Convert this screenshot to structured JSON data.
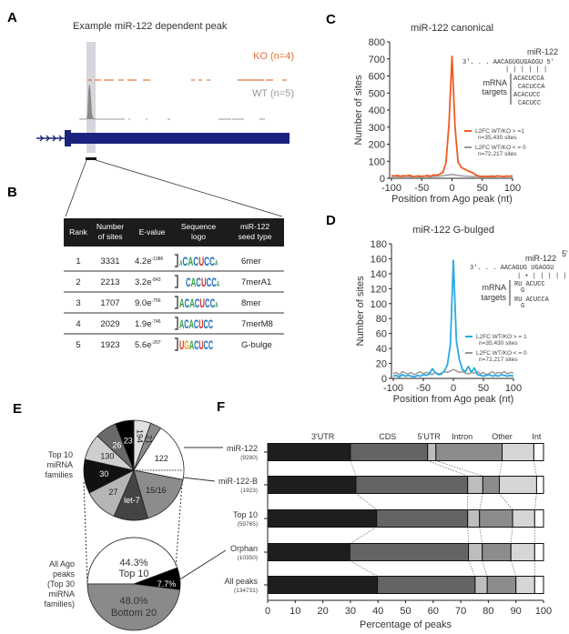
{
  "panels": {
    "A": "A",
    "B": "B",
    "C": "C",
    "D": "D",
    "E": "E",
    "F": "F"
  },
  "panelA": {
    "title": "Example miR-122 dependent peak",
    "ko_label": "KO (n=4)",
    "wt_label": "WT (n=5)",
    "colors": {
      "ko": "#e8703a",
      "wt": "#8a8a8a",
      "gene": "#1a237e"
    }
  },
  "panelB": {
    "headers": [
      "Rank",
      "Number\nof sites",
      "E-value",
      "Sequence\nlogo",
      "miR-122\nseed type"
    ],
    "header_lines": [
      [
        "Rank"
      ],
      [
        "Number",
        "of sites"
      ],
      [
        "E-value"
      ],
      [
        "Sequence",
        "logo"
      ],
      [
        "miR-122",
        "seed type"
      ]
    ],
    "rows": [
      {
        "rank": "1",
        "sites": "3331",
        "e_base": "4.2e",
        "e_exp": "-1086",
        "logo": "ACACUCCA",
        "seed": "6mer"
      },
      {
        "rank": "2",
        "sites": "2213",
        "e_base": "3.2e",
        "e_exp": "-843",
        "logo": "CACUCCA",
        "seed": "7merA1"
      },
      {
        "rank": "3",
        "sites": "1707",
        "e_base": "9.0e",
        "e_exp": "-756",
        "logo": "ACACUCCA",
        "seed": "8mer"
      },
      {
        "rank": "4",
        "sites": "2029",
        "e_base": "1.9e",
        "e_exp": "-746",
        "logo": "ACACUCC",
        "seed": "7merM8"
      },
      {
        "rank": "5",
        "sites": "1923",
        "e_base": "5.6e",
        "e_exp": "-207",
        "logo": "UGACUCC",
        "seed": "G-bulge"
      }
    ]
  },
  "chart_data": [
    {
      "id": "C",
      "type": "line",
      "title": "miR-122 canonical",
      "xlabel": "Position from Ago peak (nt)",
      "ylabel": "Number of sites",
      "xlim": [
        -100,
        100
      ],
      "ylim": [
        0,
        800
      ],
      "xticks": [
        -100,
        -50,
        0,
        50,
        100
      ],
      "yticks": [
        0,
        100,
        200,
        300,
        400,
        500,
        600,
        700,
        800
      ],
      "x": [
        -100,
        -95,
        -90,
        -85,
        -80,
        -75,
        -70,
        -65,
        -60,
        -55,
        -50,
        -45,
        -40,
        -35,
        -30,
        -25,
        -20,
        -15,
        -10,
        -5,
        0,
        5,
        10,
        15,
        20,
        25,
        30,
        35,
        40,
        45,
        50,
        55,
        60,
        65,
        70,
        75,
        80,
        85,
        90,
        95,
        100
      ],
      "series": [
        {
          "name": "L2FC WT/KO > =1",
          "note": "n=35,430 sites",
          "color": "#f05a22",
          "values": [
            15,
            14,
            16,
            12,
            15,
            13,
            18,
            10,
            12,
            14,
            11,
            13,
            16,
            12,
            20,
            18,
            25,
            35,
            90,
            320,
            715,
            300,
            95,
            65,
            55,
            45,
            38,
            30,
            18,
            12,
            10,
            12,
            10,
            13,
            11,
            14,
            12,
            10,
            13,
            12,
            14
          ]
        },
        {
          "name": "L2FC WT/KO < = 0",
          "note": "n=72,217 sites",
          "color": "#999999",
          "values": [
            10,
            12,
            9,
            11,
            10,
            12,
            9,
            10,
            11,
            9,
            10,
            12,
            10,
            9,
            11,
            12,
            13,
            15,
            18,
            20,
            22,
            20,
            17,
            15,
            13,
            12,
            11,
            10,
            12,
            9,
            11,
            10,
            12,
            10,
            9,
            11,
            12,
            10,
            11,
            12,
            10
          ]
        }
      ],
      "annotation": {
        "mirna": "miR-122",
        "mir_seq": "3'. . . AACAGUGUGAGGU 5'",
        "pairs": "| | | | | |",
        "targets_label": [
          "mRNA",
          "targets"
        ],
        "targets": [
          "ACACUCCA",
          "CACUCCA",
          "ACACUCC",
          "CACUCC"
        ]
      }
    },
    {
      "id": "D",
      "type": "line",
      "title": "miR-122 G-bulged",
      "xlabel": "Position from Ago peak (nt)",
      "ylabel": "Number of sites",
      "xlim": [
        -100,
        100
      ],
      "ylim": [
        0,
        180
      ],
      "xticks": [
        -100,
        -50,
        0,
        50,
        100
      ],
      "yticks": [
        0,
        20,
        40,
        60,
        80,
        100,
        120,
        140,
        160,
        180
      ],
      "x": [
        -100,
        -95,
        -90,
        -85,
        -80,
        -75,
        -70,
        -65,
        -60,
        -55,
        -50,
        -45,
        -40,
        -35,
        -30,
        -25,
        -20,
        -15,
        -10,
        -5,
        0,
        5,
        10,
        15,
        20,
        25,
        30,
        35,
        40,
        45,
        50,
        55,
        60,
        65,
        70,
        75,
        80,
        85,
        90,
        95,
        100
      ],
      "series": [
        {
          "name": "L2FC WT/KO > = 1",
          "note": "n=35,430 sites",
          "color": "#29abe2",
          "values": [
            3,
            4,
            2,
            5,
            3,
            4,
            3,
            2,
            4,
            3,
            5,
            4,
            6,
            13,
            8,
            5,
            6,
            10,
            18,
            45,
            158,
            50,
            25,
            12,
            9,
            16,
            8,
            14,
            5,
            4,
            3,
            4,
            5,
            3,
            4,
            3,
            5,
            4,
            3,
            4,
            3
          ]
        },
        {
          "name": "L2FC WT/KO < = 0",
          "note": "n=72,217 sites",
          "color": "#999999",
          "values": [
            6,
            8,
            5,
            9,
            7,
            6,
            8,
            5,
            7,
            9,
            6,
            8,
            7,
            5,
            8,
            6,
            7,
            9,
            8,
            10,
            12,
            10,
            8,
            9,
            7,
            6,
            8,
            7,
            9,
            6,
            8,
            5,
            7,
            9,
            6,
            8,
            7,
            9,
            6,
            8,
            7
          ]
        }
      ],
      "annotation": {
        "five_prime": "5'",
        "mirna": "miR-122",
        "mir_seq": "3'. . . AACAGUG UGAGGU",
        "pairs": "| • | | | | |",
        "targets_label": [
          "mRNA",
          "targets"
        ],
        "targets": [
          "RU ACUCC",
          "RU ACUCCA"
        ],
        "bulge": "G"
      }
    },
    {
      "id": "E-top",
      "type": "pie",
      "label": [
        "Top 10",
        "miRNA",
        "families"
      ],
      "slices": [
        {
          "label": "194",
          "value": 5.5,
          "color": "#e0e0e0"
        },
        {
          "label": "21",
          "value": 3.5,
          "color": "#8a8a8a"
        },
        {
          "label": "122",
          "value": 19,
          "color": "#ffffff"
        },
        {
          "label": "15/16",
          "value": 17.5,
          "color": "#8c8c8c"
        },
        {
          "label": "let-7",
          "value": 11,
          "color": "#444444"
        },
        {
          "label": "27",
          "value": 11,
          "color": "#b5b5b5"
        },
        {
          "label": "30",
          "value": 11,
          "color": "#111111"
        },
        {
          "label": "130",
          "value": 8.5,
          "color": "#cfcfcf"
        },
        {
          "label": "26",
          "value": 7,
          "color": "#6a6a6a"
        },
        {
          "label": "23",
          "value": 6,
          "color": "#000000"
        }
      ]
    },
    {
      "id": "E-bottom",
      "type": "pie",
      "label": [
        "All Ago",
        "peaks",
        "(Top 30",
        "miRNA",
        "families)"
      ],
      "slices": [
        {
          "label": "44.3%",
          "sub": "Top 10",
          "value": 44.3,
          "color": "#ffffff"
        },
        {
          "label": "7.7%",
          "sub": "",
          "value": 7.7,
          "color": "#000000"
        },
        {
          "label": "48.0%",
          "sub": "Bottom 20",
          "value": 48.0,
          "color": "#8a8a8a"
        }
      ]
    },
    {
      "id": "F",
      "type": "bar",
      "orientation": "horizontal-stacked",
      "xlabel": "Percentage of peaks",
      "xlim": [
        0,
        100
      ],
      "xticks": [
        0,
        10,
        20,
        30,
        40,
        50,
        60,
        70,
        80,
        90,
        100
      ],
      "segments": [
        {
          "name": "3'UTR",
          "color": "#1e1e1e"
        },
        {
          "name": "CDS",
          "color": "#646464"
        },
        {
          "name": "5'UTR",
          "color": "#bdbdbd"
        },
        {
          "name": "Intron",
          "color": "#8c8c8c"
        },
        {
          "name": "Other",
          "color": "#d6d6d6"
        },
        {
          "name": "Int",
          "color": "#ffffff"
        }
      ],
      "categories": [
        {
          "name": "miR-122",
          "n": "(9280)"
        },
        {
          "name": "miR-122-B",
          "n": "(1923)"
        },
        {
          "name": "Top 10",
          "n": "(59765)"
        },
        {
          "name": "Orphan",
          "n": "(10350)"
        },
        {
          "name": "All peaks",
          "n": "(134731)"
        }
      ],
      "values": [
        [
          30,
          28,
          3,
          24,
          11.5,
          3.5
        ],
        [
          32,
          40.5,
          5.5,
          6,
          13.5,
          2.5
        ],
        [
          39.5,
          33,
          4.3,
          12,
          8,
          3.2
        ],
        [
          29.8,
          43,
          5,
          10.4,
          8.6,
          3.2
        ],
        [
          39.8,
          35.4,
          4.4,
          10.4,
          6.8,
          3.2
        ]
      ]
    }
  ]
}
